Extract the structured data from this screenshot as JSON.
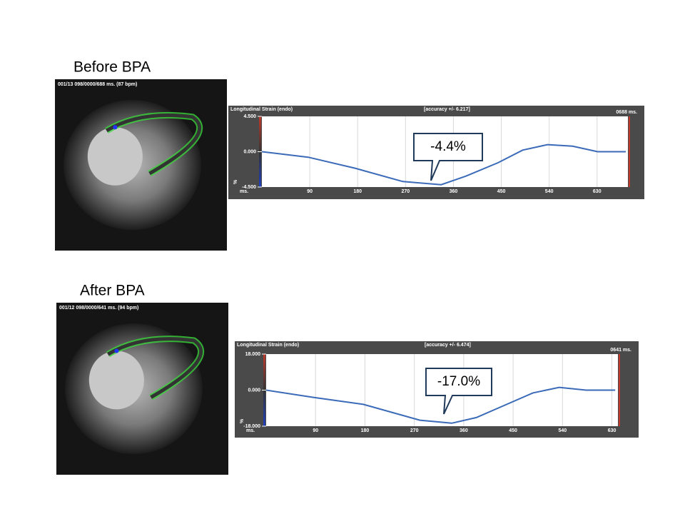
{
  "chart_data": [
    {
      "type": "line",
      "label": "Before BPA",
      "image_caption": "001/13 098/0000/688 ms. (87 bpm)",
      "title": "Longitudinal Strain (endo)",
      "subtitle": "[accuracy +/- 6.217]",
      "time_label": "0688 ms.",
      "x_label": "ms.",
      "y_label": "%",
      "annotation": "-4.4%",
      "x": [
        0,
        87,
        175,
        265,
        337,
        384,
        444,
        490,
        537,
        584,
        631,
        684
      ],
      "values": [
        0,
        -0.7,
        -2.1,
        -3.8,
        -4.2,
        -3.1,
        -1.4,
        0.2,
        0.9,
        0.7,
        0,
        0
      ],
      "color": "#3a6ab8",
      "grid": true,
      "xlim": [
        0,
        688
      ],
      "xticks": [
        90,
        180,
        270,
        360,
        450,
        540,
        630
      ],
      "ylim": [
        -4.5,
        4.5
      ],
      "yticks": [
        {
          "value": -4.5,
          "label": "-4.500"
        },
        {
          "value": 0,
          "label": "0.000"
        },
        {
          "value": 4.5,
          "label": "4.500"
        }
      ]
    },
    {
      "type": "line",
      "label": "After BPA",
      "image_caption": "001/12 098/0000/641 ms. (94 bpm)",
      "title": "Longitudinal Strain (endo)",
      "subtitle": "[accuracy +/- 6.474]",
      "time_label": "0641 ms.",
      "x_label": "ms.",
      "y_label": "%",
      "annotation": "-17.0%",
      "x": [
        0,
        86,
        177,
        280,
        338,
        383,
        435,
        486,
        534,
        583,
        636
      ],
      "values": [
        0,
        -3.6,
        -7.1,
        -15,
        -16.5,
        -13.7,
        -7.5,
        -1.4,
        1.4,
        0,
        0
      ],
      "color": "#3a6ab8",
      "grid": true,
      "xlim": [
        0,
        641
      ],
      "xticks": [
        90,
        180,
        270,
        360,
        450,
        540,
        630
      ],
      "ylim": [
        -18,
        18
      ],
      "yticks": [
        {
          "value": -18,
          "label": "-18.000"
        },
        {
          "value": 0,
          "label": "0.000"
        },
        {
          "value": 18,
          "label": "18.000"
        }
      ]
    }
  ]
}
